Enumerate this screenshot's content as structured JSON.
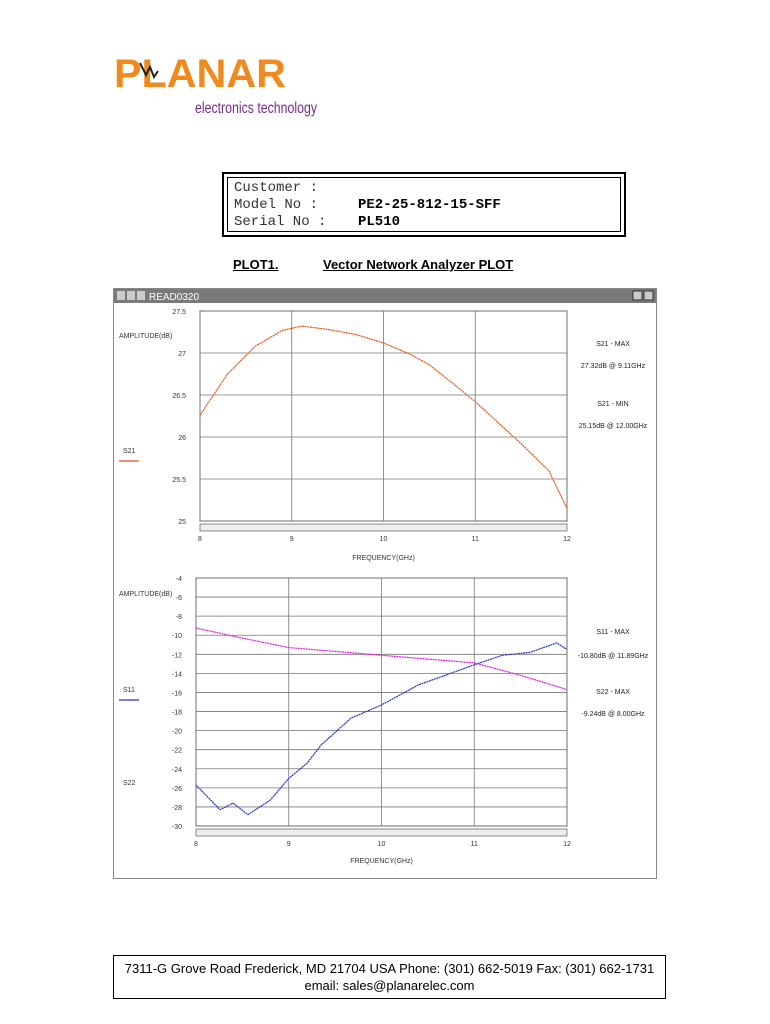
{
  "header": {
    "logo_name": "PLANAR",
    "logo_tagline": "electronics technology"
  },
  "info": {
    "rows": [
      [
        "Customer :",
        ""
      ],
      [
        "Model No :",
        "PE2-25-812-15-SFF"
      ],
      [
        "Serial No :",
        "PL510"
      ]
    ]
  },
  "plot_heading": {
    "label": "PLOT1.",
    "title": "Vector Network Analyzer PLOT"
  },
  "window": {
    "title": "READ0320",
    "plots": [
      {
        "y_label": "AMPLITUDE(dB)",
        "x_label": "FREQUENCY(GHz)",
        "ylim": [
          25,
          27.5
        ],
        "yticks": [
          "27.5",
          27,
          26.5,
          26,
          25.5,
          25
        ],
        "xlim": [
          8,
          12
        ],
        "xticks": [
          8,
          9,
          10,
          11,
          12
        ],
        "series": [
          {
            "name": "S21",
            "color": "#e8561c",
            "x": [
              8,
              8.3,
              8.6,
              8.9,
              9.11,
              9.4,
              9.7,
              10,
              10.3,
              10.5,
              10.8,
              11,
              11.2,
              11.5,
              11.8,
              12
            ],
            "values": [
              26.26,
              26.75,
              27.08,
              27.27,
              27.32,
              27.28,
              27.22,
              27.12,
              26.98,
              26.86,
              26.6,
              26.42,
              26.22,
              25.92,
              25.6,
              25.15
            ]
          }
        ],
        "legend": [
          "S21"
        ],
        "annotations": [
          "S21 - MAX",
          "27.32dB @ 9.11GHz",
          "S21 - MIN",
          "25.15dB @ 12.00GHz"
        ]
      },
      {
        "y_label": "AMPLITUDE(dB)",
        "x_label": "FREQUENCY(GHz)",
        "ylim": [
          -30,
          -4
        ],
        "yticks": [
          -4,
          -6,
          -8,
          -10,
          -12,
          -14,
          -16,
          -18,
          -20,
          -22,
          -24,
          -26,
          -28,
          -30
        ],
        "xlim": [
          8,
          12
        ],
        "xticks": [
          8,
          9,
          10,
          11,
          12
        ],
        "series": [
          {
            "name": "S11",
            "color": "#2233cc",
            "x": [
              8,
              8.26,
              8.4,
              8.56,
              8.8,
              9,
              9.2,
              9.35,
              9.67,
              10,
              10.4,
              10.8,
              11,
              11.3,
              11.6,
              11.89,
              12
            ],
            "values": [
              -25.7,
              -28.3,
              -27.6,
              -28.8,
              -27.3,
              -25,
              -23.4,
              -21.5,
              -18.7,
              -17.3,
              -15.2,
              -13.8,
              -13.1,
              -12.1,
              -11.8,
              -10.8,
              -11.5
            ]
          },
          {
            "name": "S22",
            "color": "#e020e0",
            "x": [
              8,
              8.5,
              9,
              9.5,
              10,
              10.5,
              11,
              11.5,
              12
            ],
            "values": [
              -9.24,
              -10.3,
              -11.3,
              -11.7,
              -12.1,
              -12.5,
              -12.9,
              -14.2,
              -15.7
            ]
          }
        ],
        "legend": [
          "S11",
          "S22"
        ],
        "annotations": [
          "S11 - MAX",
          "-10.80dB @ 11.89GHz",
          "S22 - MAX",
          "-9.24dB @ 8.00GHz"
        ]
      }
    ]
  },
  "footer": {
    "line1": "7311-G Grove Road Frederick, MD 21704 USA   Phone: (301) 662-5019  Fax: (301) 662-1731",
    "line2": "email: sales@planarelec.com"
  }
}
